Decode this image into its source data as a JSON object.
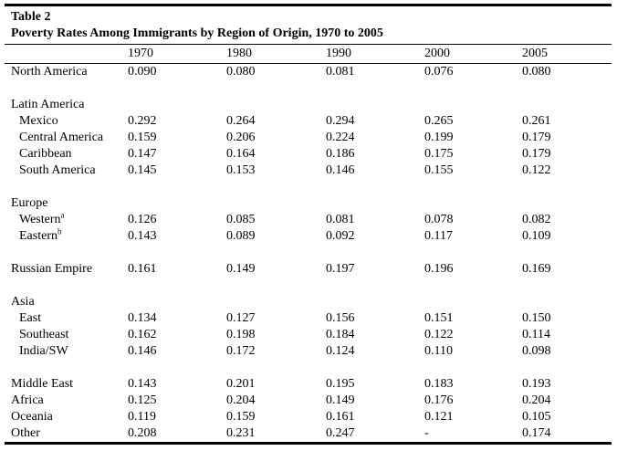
{
  "document": {
    "table_number": "Table 2",
    "title": "Poverty Rates Among Immigrants by Region of Origin, 1970 to 2005"
  },
  "table": {
    "columns": [
      "1970",
      "1980",
      "1990",
      "2000",
      "2005"
    ],
    "rows": [
      {
        "label": "North America",
        "values": [
          "0.090",
          "0.080",
          "0.081",
          "0.076",
          "0.080"
        ]
      },
      {
        "spacer": true
      },
      {
        "label": "Latin America",
        "group": true,
        "values": []
      },
      {
        "label": "Mexico",
        "indent": true,
        "values": [
          "0.292",
          "0.264",
          "0.294",
          "0.265",
          "0.261"
        ]
      },
      {
        "label": "Central America",
        "indent": true,
        "values": [
          "0.159",
          "0.206",
          "0.224",
          "0.199",
          "0.179"
        ]
      },
      {
        "label": "Caribbean",
        "indent": true,
        "values": [
          "0.147",
          "0.164",
          "0.186",
          "0.175",
          "0.179"
        ]
      },
      {
        "label": "South America",
        "indent": true,
        "values": [
          "0.145",
          "0.153",
          "0.146",
          "0.155",
          "0.122"
        ]
      },
      {
        "spacer": true
      },
      {
        "label": "Europe",
        "group": true,
        "values": []
      },
      {
        "label": "Western",
        "sup": "a",
        "indent": true,
        "values": [
          "0.126",
          "0.085",
          "0.081",
          "0.078",
          "0.082"
        ]
      },
      {
        "label": "Eastern",
        "sup": "b",
        "indent": true,
        "values": [
          "0.143",
          "0.089",
          "0.092",
          "0.117",
          "0.109"
        ]
      },
      {
        "spacer": true
      },
      {
        "label": "Russian Empire",
        "values": [
          "0.161",
          "0.149",
          "0.197",
          "0.196",
          "0.169"
        ]
      },
      {
        "spacer": true
      },
      {
        "label": "Asia",
        "group": true,
        "values": []
      },
      {
        "label": "East",
        "indent": true,
        "values": [
          "0.134",
          "0.127",
          "0.156",
          "0.151",
          "0.150"
        ]
      },
      {
        "label": "Southeast",
        "indent": true,
        "values": [
          "0.162",
          "0.198",
          "0.184",
          "0.122",
          "0.114"
        ]
      },
      {
        "label": "India/SW",
        "indent": true,
        "values": [
          "0.146",
          "0.172",
          "0.124",
          "0.110",
          "0.098"
        ]
      },
      {
        "spacer": true
      },
      {
        "label": "Middle East",
        "values": [
          "0.143",
          "0.201",
          "0.195",
          "0.183",
          "0.193"
        ]
      },
      {
        "label": "Africa",
        "values": [
          "0.125",
          "0.204",
          "0.149",
          "0.176",
          "0.204"
        ]
      },
      {
        "label": "Oceania",
        "values": [
          "0.119",
          "0.159",
          "0.161",
          "0.121",
          "0.105"
        ]
      },
      {
        "label": "Other",
        "values": [
          "0.208",
          "0.231",
          "0.247",
          "-",
          "0.174"
        ]
      }
    ]
  }
}
